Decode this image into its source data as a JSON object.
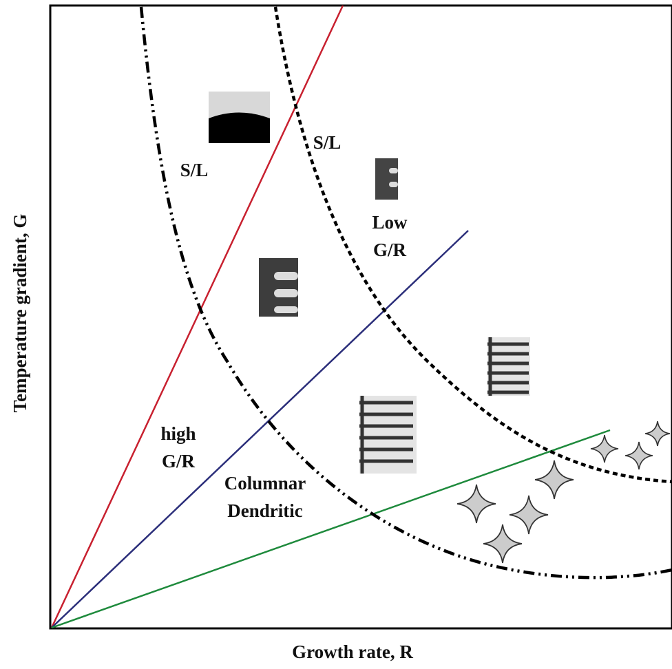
{
  "axes": {
    "x_label": "Growth rate, R",
    "y_label": "Temperature gradient, G"
  },
  "regions": {
    "planar_left": "S/L",
    "planar_right": "S/L",
    "low": [
      "Low",
      "G/R"
    ],
    "high": [
      "high",
      "G/R"
    ],
    "columnar": [
      "Columnar",
      "Dendritic"
    ]
  }
}
